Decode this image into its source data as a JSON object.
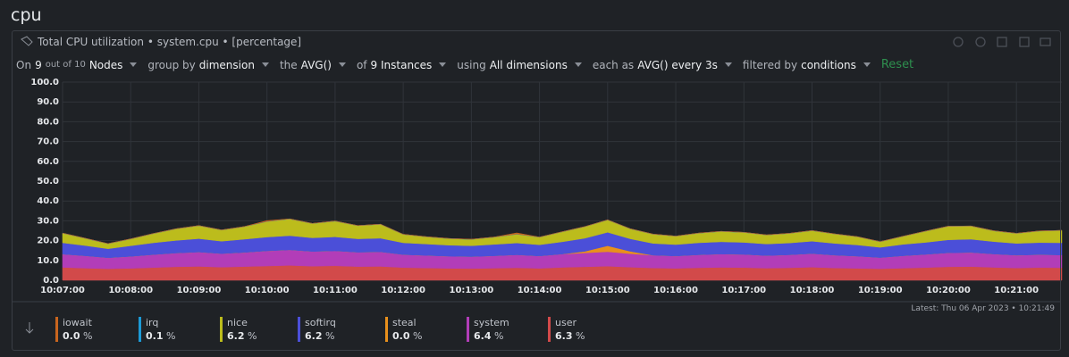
{
  "section_title": "cpu",
  "card_title": "Total CPU utilization • system.cpu • [percentage]",
  "toolbar": [
    [
      "On",
      "9",
      "out of 10",
      "Nodes"
    ],
    [
      "group by",
      "dimension"
    ],
    [
      "the",
      "AVG()"
    ],
    [
      "of",
      "9 Instances"
    ],
    [
      "using",
      "All dimensions"
    ],
    [
      "each as",
      "AVG() every 3s"
    ],
    [
      "filtered by",
      "conditions"
    ]
  ],
  "reset": "Reset",
  "latest": "Latest: Thu 06 Apr 2023 • 10:21:49",
  "chart_data": {
    "type": "stacked-area",
    "unit": "%",
    "x": [
      "10:07:00",
      "10:07:20",
      "10:07:40",
      "10:08:00",
      "10:08:20",
      "10:08:40",
      "10:09:00",
      "10:09:20",
      "10:09:40",
      "10:10:00",
      "10:10:20",
      "10:10:40",
      "10:11:00",
      "10:11:20",
      "10:11:40",
      "10:12:00",
      "10:12:20",
      "10:12:40",
      "10:13:00",
      "10:13:20",
      "10:13:40",
      "10:14:00",
      "10:14:20",
      "10:14:40",
      "10:15:00",
      "10:15:20",
      "10:15:40",
      "10:16:00",
      "10:16:20",
      "10:16:40",
      "10:17:00",
      "10:17:20",
      "10:17:40",
      "10:18:00",
      "10:18:20",
      "10:18:40",
      "10:19:00",
      "10:19:20",
      "10:19:40",
      "10:20:00",
      "10:20:20",
      "10:20:40",
      "10:21:00",
      "10:21:20",
      "10:21:40"
    ],
    "xlim": [
      "10:07:00",
      "10:21:40"
    ],
    "xticks": [
      "10:07:00",
      "10:08:00",
      "10:09:00",
      "10:10:00",
      "10:11:00",
      "10:12:00",
      "10:13:00",
      "10:14:00",
      "10:15:00",
      "10:16:00",
      "10:17:00",
      "10:18:00",
      "10:19:00",
      "10:20:00",
      "10:21:00"
    ],
    "ylim": [
      0,
      100
    ],
    "yticks": [
      {
        "value": 0,
        "label": "0.0"
      },
      {
        "value": 10,
        "label": "10.0"
      },
      {
        "value": 20,
        "label": "20.0"
      },
      {
        "value": 30,
        "label": "30.0"
      },
      {
        "value": 40,
        "label": "40.0"
      },
      {
        "value": 50,
        "label": "50.0"
      },
      {
        "value": 60,
        "label": "60.0"
      },
      {
        "value": 70,
        "label": "70.0"
      },
      {
        "value": 80,
        "label": "80.0"
      },
      {
        "value": 90,
        "label": "90.0"
      },
      {
        "value": 100,
        "label": "100.0"
      }
    ],
    "grid": true,
    "series": [
      {
        "name": "iowait",
        "color": "#c8651e",
        "latest": "0.0",
        "values": [
          0,
          0,
          0,
          0,
          0,
          0,
          0,
          0,
          0,
          0.4,
          0,
          0,
          0,
          0,
          0,
          0,
          0,
          0,
          0,
          0,
          0.6,
          0,
          0,
          0,
          0,
          0,
          0,
          0,
          0,
          0,
          0,
          0,
          0,
          0,
          0,
          0,
          0,
          0,
          0,
          0,
          0,
          0,
          0,
          0,
          0
        ]
      },
      {
        "name": "irq",
        "color": "#1c9ad6",
        "latest": "0.1",
        "values": [
          0.1,
          0.1,
          0.1,
          0.1,
          0.1,
          0.1,
          0.1,
          0.1,
          0.1,
          0.1,
          0.1,
          0.1,
          0.1,
          0.1,
          0.1,
          0.1,
          0.1,
          0.1,
          0.1,
          0.1,
          0.1,
          0.1,
          0.1,
          0.1,
          0.1,
          0.1,
          0.1,
          0.1,
          0.1,
          0.1,
          0.1,
          0.1,
          0.1,
          0.1,
          0.1,
          0.1,
          0.1,
          0.1,
          0.1,
          0.1,
          0.1,
          0.1,
          0.1,
          0.1,
          0.1
        ]
      },
      {
        "name": "nice",
        "color": "#bcbc1c",
        "latest": "6.2",
        "values": [
          4.8,
          3.6,
          2.5,
          3.4,
          4.6,
          5.8,
          6.5,
          5.6,
          6.3,
          7.8,
          8.4,
          7.2,
          7.9,
          6.6,
          7.0,
          4.2,
          3.6,
          3.3,
          3.2,
          3.6,
          4.4,
          3.8,
          5.0,
          5.8,
          6.2,
          5.0,
          4.6,
          4.2,
          4.8,
          5.2,
          5.0,
          4.5,
          4.8,
          5.3,
          4.7,
          4.1,
          2.8,
          4.0,
          5.6,
          6.8,
          6.6,
          5.4,
          5.0,
          5.8,
          6.2
        ]
      },
      {
        "name": "softirq",
        "color": "#4b4fd8",
        "latest": "6.2",
        "values": [
          5.8,
          5.2,
          4.6,
          5.4,
          6.0,
          6.4,
          6.8,
          6.3,
          6.7,
          7.0,
          7.2,
          6.9,
          7.1,
          6.8,
          6.9,
          6.0,
          5.8,
          5.6,
          5.5,
          5.8,
          6.0,
          5.7,
          6.2,
          6.6,
          6.8,
          6.3,
          6.0,
          5.8,
          6.1,
          6.2,
          6.1,
          5.9,
          6.0,
          6.3,
          6.0,
          5.7,
          5.2,
          5.8,
          6.1,
          6.6,
          6.7,
          6.3,
          6.0,
          6.1,
          6.2
        ]
      },
      {
        "name": "steal",
        "color": "#e8901c",
        "latest": "0.0",
        "values": [
          0,
          0,
          0,
          0,
          0,
          0,
          0,
          0,
          0,
          0,
          0,
          0,
          0,
          0,
          0,
          0,
          0,
          0,
          0,
          0,
          0,
          0,
          0,
          0.8,
          3.0,
          1.2,
          0,
          0,
          0,
          0,
          0,
          0,
          0,
          0,
          0,
          0,
          0,
          0,
          0,
          0,
          0,
          0,
          0,
          0,
          0
        ]
      },
      {
        "name": "system",
        "color": "#b23db8",
        "latest": "6.4",
        "values": [
          6.6,
          6.2,
          5.5,
          6.0,
          6.5,
          6.9,
          7.2,
          6.8,
          7.1,
          7.6,
          7.8,
          7.4,
          7.5,
          7.2,
          7.3,
          6.5,
          6.3,
          6.1,
          6.0,
          6.2,
          6.5,
          6.2,
          6.7,
          7.0,
          7.3,
          6.8,
          6.4,
          6.2,
          6.5,
          6.7,
          6.6,
          6.3,
          6.5,
          6.8,
          6.4,
          6.1,
          5.6,
          6.2,
          6.6,
          7.0,
          7.1,
          6.7,
          6.4,
          6.5,
          6.4
        ]
      },
      {
        "name": "user",
        "color": "#d24a4a",
        "latest": "6.3",
        "values": [
          6.5,
          6.1,
          5.8,
          6.0,
          6.4,
          6.8,
          7.0,
          6.6,
          6.9,
          7.2,
          7.5,
          7.1,
          7.3,
          6.9,
          7.0,
          6.4,
          6.2,
          6.0,
          5.9,
          6.1,
          6.3,
          6.0,
          6.5,
          6.8,
          7.1,
          6.6,
          6.2,
          6.0,
          6.3,
          6.5,
          6.4,
          6.1,
          6.3,
          6.6,
          6.2,
          6.0,
          5.8,
          6.1,
          6.4,
          6.8,
          6.9,
          6.5,
          6.2,
          6.4,
          6.3
        ]
      }
    ]
  }
}
